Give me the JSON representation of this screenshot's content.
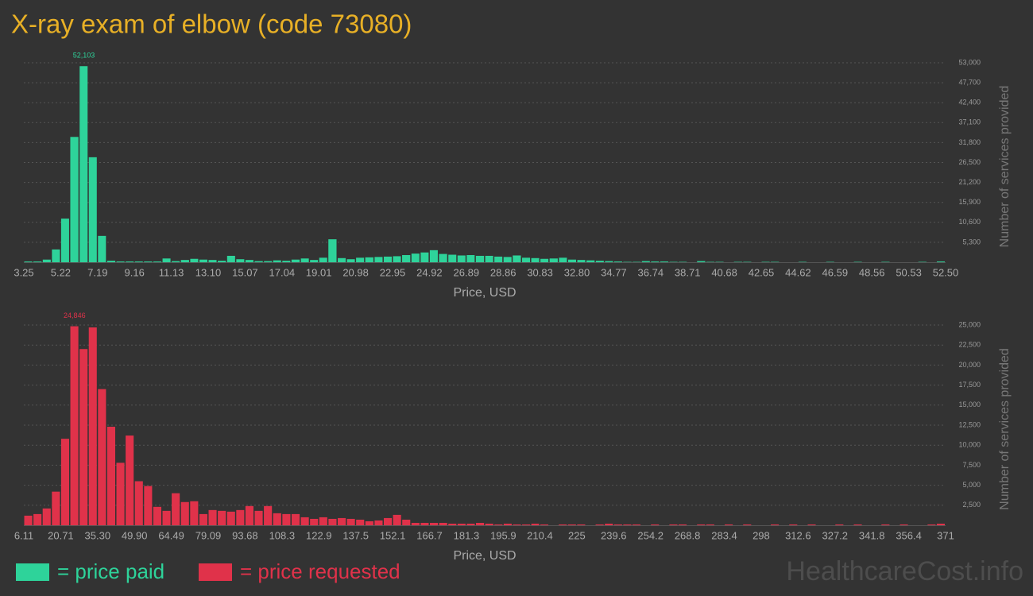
{
  "title": "X-ray exam of elbow (code 73080)",
  "watermark": "HealthcareCost.info",
  "chart_data": [
    {
      "type": "histogram",
      "label": "= price paid",
      "color": "#2ed39a",
      "xlabel": "Price, USD",
      "ylabel": "Number of services provided",
      "xlim": [
        3.25,
        52.5
      ],
      "ylim": [
        0,
        53000
      ],
      "grid": true,
      "xticks": [
        3.25,
        5.22,
        7.19,
        9.16,
        11.13,
        {
          "value": 13.1,
          "label": "13.10"
        },
        15.07,
        17.04,
        19.01,
        20.98,
        22.95,
        24.92,
        26.89,
        28.86,
        30.83,
        {
          "value": 32.8,
          "label": "32.80"
        },
        34.77,
        36.74,
        38.71,
        40.68,
        42.65,
        44.62,
        46.59,
        48.56,
        50.53,
        {
          "value": 52.5,
          "label": "52.50"
        }
      ],
      "yticks": [
        {
          "value": 5300,
          "label": "5,300"
        },
        {
          "value": 10600,
          "label": "10,600"
        },
        {
          "value": 15900,
          "label": "15,900"
        },
        {
          "value": 21200,
          "label": "21,200"
        },
        {
          "value": 26500,
          "label": "26,500"
        },
        {
          "value": 31800,
          "label": "31,800"
        },
        {
          "value": 37100,
          "label": "37,100"
        },
        {
          "value": 42400,
          "label": "42,400"
        },
        {
          "value": 47700,
          "label": "47,700"
        },
        {
          "value": 53000,
          "label": "53,000"
        }
      ],
      "bins": [
        3.25,
        3.74,
        4.24,
        4.73,
        5.22,
        5.71,
        6.21,
        6.7,
        7.19,
        7.68,
        8.18,
        8.67,
        9.16,
        9.65,
        10.15,
        10.64,
        11.13,
        11.62,
        12.12,
        12.61,
        13.1,
        13.59,
        14.09,
        14.58,
        15.07,
        15.56,
        16.06,
        16.55,
        17.04,
        17.53,
        18.03,
        18.52,
        19.01,
        19.5,
        20,
        20.49,
        20.98,
        21.47,
        21.97,
        22.46,
        22.95,
        23.44,
        23.94,
        24.43,
        24.92,
        25.41,
        25.91,
        26.4,
        26.89,
        27.38,
        27.88,
        28.37,
        28.86,
        29.35,
        29.85,
        30.34,
        30.83,
        31.32,
        31.82,
        32.31,
        32.8,
        33.29,
        33.79,
        34.28,
        34.77,
        35.26,
        35.76,
        36.25,
        36.74,
        37.23,
        37.73,
        38.22,
        38.71,
        39.2,
        39.7,
        40.19,
        40.68,
        41.17,
        41.67,
        42.16,
        42.65,
        43.14,
        43.64,
        44.13,
        44.62,
        45.11,
        45.61,
        46.1,
        46.59,
        47.08,
        47.58,
        48.07,
        48.56,
        49.05,
        49.55,
        50.04,
        50.53,
        51.02,
        51.52,
        52.01,
        52.5
      ],
      "values": [
        200,
        200,
        700,
        3400,
        11600,
        33300,
        52103,
        27900,
        7000,
        400,
        200,
        200,
        200,
        200,
        200,
        1000,
        300,
        600,
        900,
        700,
        600,
        400,
        1700,
        800,
        600,
        300,
        300,
        500,
        400,
        700,
        1000,
        600,
        1200,
        6100,
        1100,
        800,
        1200,
        1300,
        1400,
        1500,
        1600,
        1900,
        2300,
        2600,
        3200,
        2200,
        2000,
        1800,
        1900,
        1700,
        1700,
        1500,
        1400,
        1800,
        1200,
        1100,
        900,
        1000,
        1200,
        700,
        600,
        500,
        400,
        300,
        200,
        100,
        100,
        300,
        200,
        200,
        100,
        100,
        0,
        300,
        100,
        100,
        0,
        100,
        100,
        0,
        100,
        100,
        0,
        0,
        100,
        0,
        0,
        100,
        0,
        0,
        100,
        0,
        0,
        100,
        0,
        0,
        0,
        100,
        0,
        200
      ],
      "value_labels": [
        null,
        null,
        null,
        null,
        null,
        null,
        "52,103",
        null,
        null,
        null,
        null,
        null,
        null,
        null,
        null,
        null,
        null,
        null,
        null,
        null,
        null,
        null,
        null,
        null,
        null,
        null,
        null,
        null,
        null,
        null,
        null,
        null,
        null,
        null,
        null,
        null,
        null,
        null,
        null,
        null,
        null,
        null,
        null,
        null,
        null,
        null,
        null,
        null,
        null,
        null,
        null,
        null,
        null,
        null,
        null,
        null,
        null,
        null,
        null,
        null,
        null,
        null,
        null,
        null,
        null,
        null,
        null,
        null,
        null,
        null,
        null,
        null,
        null,
        null,
        null,
        null,
        null,
        null,
        null,
        null,
        null,
        null,
        null,
        null,
        null,
        null,
        null,
        null,
        null,
        null,
        null,
        null,
        null,
        null,
        null,
        null,
        null,
        null,
        null,
        null
      ]
    },
    {
      "type": "histogram",
      "label": "= price requested",
      "color": "#e0324a",
      "xlabel": "Price, USD",
      "ylabel": "Number of services provided",
      "xlim": [
        6.11,
        371
      ],
      "ylim": [
        0,
        25000
      ],
      "grid": true,
      "xticks": [
        6.11,
        20.71,
        {
          "value": 35.3,
          "label": "35.30"
        },
        {
          "value": 49.9,
          "label": "49.90"
        },
        64.49,
        79.09,
        93.68,
        108.3,
        122.9,
        137.5,
        152.1,
        166.7,
        181.3,
        195.9,
        210.4,
        225,
        239.6,
        254.2,
        268.8,
        283.4,
        298,
        312.6,
        327.2,
        341.8,
        356.4,
        371
      ],
      "yticks": [
        {
          "value": 2500,
          "label": "2,500"
        },
        {
          "value": 5000,
          "label": "5,000"
        },
        {
          "value": 7500,
          "label": "7,500"
        },
        {
          "value": 10000,
          "label": "10,000"
        },
        {
          "value": 12500,
          "label": "12,500"
        },
        {
          "value": 15000,
          "label": "15,000"
        },
        {
          "value": 17500,
          "label": "17,500"
        },
        {
          "value": 20000,
          "label": "20,000"
        },
        {
          "value": 22500,
          "label": "22,500"
        },
        {
          "value": 25000,
          "label": "25,000"
        }
      ],
      "bins": [
        6.11,
        9.76,
        13.41,
        17.06,
        20.71,
        24.36,
        28.01,
        31.66,
        35.3,
        38.95,
        42.6,
        46.25,
        49.9,
        53.55,
        57.2,
        60.85,
        64.49,
        68.14,
        71.79,
        75.44,
        79.09,
        82.74,
        86.39,
        90.04,
        93.68,
        97.33,
        100.98,
        104.63,
        108.3,
        111.95,
        115.6,
        119.25,
        122.9,
        126.55,
        130.2,
        133.85,
        137.5,
        141.15,
        144.8,
        148.45,
        152.1,
        155.75,
        159.4,
        163.05,
        166.7,
        170.35,
        174,
        177.65,
        181.3,
        184.95,
        188.6,
        192.25,
        195.9,
        199.55,
        203.2,
        206.85,
        210.4,
        214.05,
        217.7,
        221.35,
        225,
        228.65,
        232.3,
        235.95,
        239.6,
        243.25,
        246.9,
        250.55,
        254.2,
        257.85,
        261.5,
        265.15,
        268.8,
        272.45,
        276.1,
        279.75,
        283.4,
        287.05,
        290.7,
        294.35,
        298,
        301.65,
        305.3,
        308.95,
        312.6,
        316.25,
        319.9,
        323.55,
        327.2,
        330.85,
        334.5,
        338.15,
        341.8,
        345.45,
        349.1,
        352.75,
        356.4,
        360.05,
        363.7,
        367.35,
        371
      ],
      "values": [
        1200,
        1400,
        2100,
        4200,
        10800,
        24846,
        22000,
        24700,
        17000,
        12300,
        7800,
        11200,
        5500,
        4900,
        2300,
        1800,
        4000,
        2900,
        3000,
        1400,
        1900,
        1800,
        1700,
        1900,
        2400,
        1800,
        2400,
        1500,
        1400,
        1400,
        1000,
        800,
        1000,
        800,
        900,
        800,
        700,
        500,
        600,
        900,
        1300,
        700,
        300,
        300,
        300,
        300,
        200,
        200,
        200,
        300,
        200,
        100,
        200,
        100,
        100,
        200,
        100,
        0,
        100,
        100,
        100,
        0,
        100,
        200,
        100,
        100,
        100,
        0,
        100,
        0,
        100,
        100,
        0,
        100,
        100,
        0,
        100,
        0,
        100,
        0,
        0,
        100,
        0,
        100,
        0,
        100,
        0,
        0,
        100,
        0,
        100,
        0,
        0,
        100,
        0,
        100,
        0,
        0,
        100,
        200
      ],
      "value_labels": [
        null,
        null,
        null,
        null,
        null,
        "24,846",
        null,
        null,
        null,
        null,
        null,
        null,
        null,
        null,
        null,
        null,
        null,
        null,
        null,
        null,
        null,
        null,
        null,
        null,
        null,
        null,
        null,
        null,
        null,
        null,
        null,
        null,
        null,
        null,
        null,
        null,
        null,
        null,
        null,
        null,
        null,
        null,
        null,
        null,
        null,
        null,
        null,
        null,
        null,
        null,
        null,
        null,
        null,
        null,
        null,
        null,
        null,
        null,
        null,
        null,
        null,
        null,
        null,
        null,
        null,
        null,
        null,
        null,
        null,
        null,
        null,
        null,
        null,
        null,
        null,
        null,
        null,
        null,
        null,
        null,
        null,
        null,
        null,
        null,
        null,
        null,
        null,
        null,
        null,
        null,
        null,
        null,
        null,
        null,
        null,
        null,
        null,
        null,
        null,
        null
      ]
    }
  ]
}
